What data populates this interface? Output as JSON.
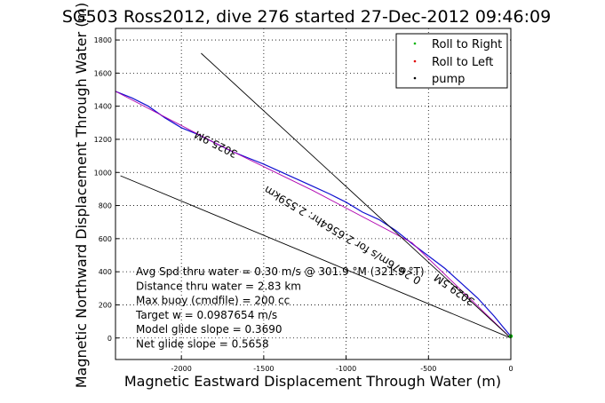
{
  "chart_data": {
    "type": "line",
    "title": "SG503 Ross2012, dive 276 started 27-Dec-2012 09:46:09",
    "xlabel": "Magnetic Eastward Displacement Through Water (m)",
    "ylabel": "Magnetic Northward Displacement Through Water (m)",
    "xlim": [
      -2400,
      0
    ],
    "ylim": [
      -130,
      1870
    ],
    "xticks": [
      -2000,
      -1500,
      -1000,
      -500,
      0
    ],
    "yticks": [
      0,
      200,
      400,
      600,
      800,
      1000,
      1200,
      1400,
      1600,
      1800
    ],
    "xtick_labels": [
      "-2000",
      "-1500",
      "-1000",
      "-500",
      "0"
    ],
    "ytick_labels": [
      "0",
      "200",
      "400",
      "600",
      "800",
      "1000",
      "1200",
      "1400",
      "1600",
      "1800"
    ],
    "grid": true,
    "legend_position": "top-right",
    "legend": [
      {
        "label": "Roll to Right",
        "color": "#00b400",
        "marker": "dot"
      },
      {
        "label": "Roll to Left",
        "color": "#e00000",
        "marker": "dot"
      },
      {
        "label": "pump",
        "color": "#000000",
        "marker": "dot"
      }
    ],
    "series": [
      {
        "color": "#1010d0",
        "x": [
          -2400,
          -2300,
          -2200,
          -2100,
          -2000,
          -1900,
          -1800,
          -1700,
          -1600,
          -1500,
          -1400,
          -1300,
          -1200,
          -1100,
          -1050,
          -1000,
          -900,
          -800,
          -700,
          -600,
          -500,
          -400,
          -300,
          -200,
          -100,
          -50,
          0
        ],
        "y": [
          1490,
          1450,
          1400,
          1330,
          1270,
          1230,
          1180,
          1130,
          1090,
          1050,
          1005,
          960,
          915,
          870,
          845,
          820,
          760,
          715,
          650,
          570,
          495,
          420,
          330,
          240,
          130,
          70,
          10
        ]
      },
      {
        "color": "#b000b0",
        "x": [
          -2400,
          -1800,
          -1200,
          -600,
          0
        ],
        "y": [
          1490,
          1180,
          890,
          575,
          0
        ]
      },
      {
        "color": "#000000",
        "x": [
          -1880,
          0
        ],
        "y": [
          1720,
          0
        ]
      },
      {
        "color": "#000000",
        "x": [
          -2370,
          0
        ],
        "y": [
          980,
          0
        ]
      }
    ],
    "annotations": [
      {
        "text": "3025.9M",
        "x": -1780,
        "y": 1190,
        "angle": 207
      },
      {
        "text": "0.2676m/s for 2.6564hr: 2.559km",
        "x": -1010,
        "y": 640,
        "angle": 211
      },
      {
        "text": "3029.5M",
        "x": -330,
        "y": 310,
        "angle": 215
      }
    ],
    "stats": [
      "Avg Spd thru water = 0.30 m/s @ 301.9 °M (321.9 °T)",
      "Distance thru water = 2.83 km",
      "Max buoy (cmdfile) = 200 cc",
      "Target w = 0.0987654 m/s",
      "Model glide slope = 0.3690",
      "Net glide slope = 0.5658"
    ]
  }
}
